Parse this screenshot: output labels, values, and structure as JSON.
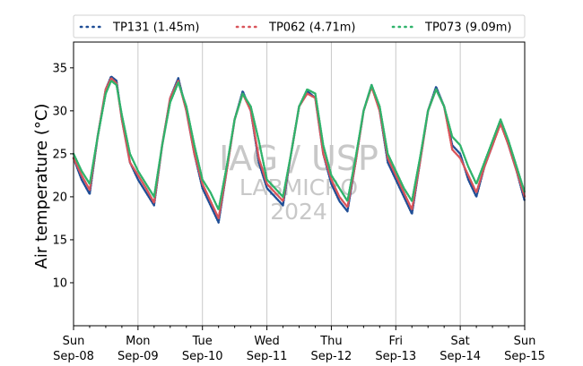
{
  "chart_data": {
    "type": "line",
    "ylabel": "Air temperature (°C)",
    "xlabel": "",
    "ylim": [
      5,
      38
    ],
    "yticks": [
      10,
      15,
      20,
      25,
      30,
      35
    ],
    "xlim": [
      "2024-09-08T00:00",
      "2024-09-15T00:00"
    ],
    "xticks": [
      {
        "date": "2024-09-08",
        "label1": "Sun",
        "label2": "Sep-08"
      },
      {
        "date": "2024-09-09",
        "label1": "Mon",
        "label2": "Sep-09"
      },
      {
        "date": "2024-09-10",
        "label1": "Tue",
        "label2": "Sep-10"
      },
      {
        "date": "2024-09-11",
        "label1": "Wed",
        "label2": "Sep-11"
      },
      {
        "date": "2024-09-12",
        "label1": "Thu",
        "label2": "Sep-12"
      },
      {
        "date": "2024-09-13",
        "label1": "Fri",
        "label2": "Sep-13"
      },
      {
        "date": "2024-09-14",
        "label1": "Sat",
        "label2": "Sep-14"
      },
      {
        "date": "2024-09-15",
        "label1": "Sun",
        "label2": "Sep-15"
      }
    ],
    "grid": "vertical lines at day boundaries",
    "legend_position": "top",
    "series": [
      {
        "name": "TP131 (1.45m)",
        "color": "#1f4e96",
        "style": "dotted",
        "points": [
          [
            "2024-09-08T00:00",
            24.5
          ],
          [
            "2024-09-08T03:00",
            22.0
          ],
          [
            "2024-09-08T06:00",
            20.3
          ],
          [
            "2024-09-08T09:00",
            27.0
          ],
          [
            "2024-09-08T12:00",
            32.5
          ],
          [
            "2024-09-08T14:00",
            34.0
          ],
          [
            "2024-09-08T16:00",
            33.5
          ],
          [
            "2024-09-08T18:00",
            29.0
          ],
          [
            "2024-09-08T21:00",
            24.0
          ],
          [
            "2024-09-09T00:00",
            22.0
          ],
          [
            "2024-09-09T03:00",
            20.5
          ],
          [
            "2024-09-09T06:00",
            19.0
          ],
          [
            "2024-09-09T09:00",
            26.0
          ],
          [
            "2024-09-09T12:00",
            31.5
          ],
          [
            "2024-09-09T15:00",
            33.8
          ],
          [
            "2024-09-09T18:00",
            30.0
          ],
          [
            "2024-09-09T21:00",
            25.0
          ],
          [
            "2024-09-10T00:00",
            21.0
          ],
          [
            "2024-09-10T03:00",
            19.0
          ],
          [
            "2024-09-10T06:00",
            17.0
          ],
          [
            "2024-09-10T09:00",
            23.0
          ],
          [
            "2024-09-10T12:00",
            29.0
          ],
          [
            "2024-09-10T15:00",
            32.3
          ],
          [
            "2024-09-10T18:00",
            30.0
          ],
          [
            "2024-09-10T21:00",
            24.0
          ],
          [
            "2024-09-11T00:00",
            21.0
          ],
          [
            "2024-09-11T03:00",
            20.0
          ],
          [
            "2024-09-11T06:00",
            19.0
          ],
          [
            "2024-09-11T09:00",
            25.0
          ],
          [
            "2024-09-11T12:00",
            30.5
          ],
          [
            "2024-09-11T15:00",
            32.3
          ],
          [
            "2024-09-11T18:00",
            31.5
          ],
          [
            "2024-09-11T21:00",
            25.0
          ],
          [
            "2024-09-12T00:00",
            21.5
          ],
          [
            "2024-09-12T03:00",
            19.5
          ],
          [
            "2024-09-12T06:00",
            18.3
          ],
          [
            "2024-09-12T09:00",
            24.0
          ],
          [
            "2024-09-12T12:00",
            30.0
          ],
          [
            "2024-09-12T15:00",
            33.0
          ],
          [
            "2024-09-12T18:00",
            30.0
          ],
          [
            "2024-09-12T21:00",
            24.0
          ],
          [
            "2024-09-13T00:00",
            22.0
          ],
          [
            "2024-09-13T03:00",
            20.0
          ],
          [
            "2024-09-13T06:00",
            18.0
          ],
          [
            "2024-09-13T09:00",
            24.0
          ],
          [
            "2024-09-13T12:00",
            30.0
          ],
          [
            "2024-09-13T15:00",
            32.8
          ],
          [
            "2024-09-13T18:00",
            30.5
          ],
          [
            "2024-09-13T21:00",
            26.0
          ],
          [
            "2024-09-14T00:00",
            25.0
          ],
          [
            "2024-09-14T03:00",
            22.0
          ],
          [
            "2024-09-14T06:00",
            20.0
          ],
          [
            "2024-09-14T09:00",
            23.5
          ],
          [
            "2024-09-14T12:00",
            26.0
          ],
          [
            "2024-09-14T15:00",
            28.8
          ],
          [
            "2024-09-14T18:00",
            26.0
          ],
          [
            "2024-09-14T21:00",
            23.0
          ],
          [
            "2024-09-15T00:00",
            19.5
          ]
        ]
      },
      {
        "name": "TP062 (4.71m)",
        "color": "#d9545a",
        "style": "dotted",
        "points": [
          [
            "2024-09-08T00:00",
            24.5
          ],
          [
            "2024-09-08T03:00",
            22.5
          ],
          [
            "2024-09-08T06:00",
            20.8
          ],
          [
            "2024-09-08T09:00",
            27.0
          ],
          [
            "2024-09-08T12:00",
            32.5
          ],
          [
            "2024-09-08T14:00",
            33.8
          ],
          [
            "2024-09-08T16:00",
            33.2
          ],
          [
            "2024-09-08T18:00",
            29.0
          ],
          [
            "2024-09-08T21:00",
            24.0
          ],
          [
            "2024-09-09T00:00",
            22.5
          ],
          [
            "2024-09-09T03:00",
            21.0
          ],
          [
            "2024-09-09T06:00",
            19.3
          ],
          [
            "2024-09-09T09:00",
            26.0
          ],
          [
            "2024-09-09T12:00",
            31.5
          ],
          [
            "2024-09-09T15:00",
            33.5
          ],
          [
            "2024-09-09T18:00",
            30.0
          ],
          [
            "2024-09-09T21:00",
            25.0
          ],
          [
            "2024-09-10T00:00",
            21.5
          ],
          [
            "2024-09-10T03:00",
            19.5
          ],
          [
            "2024-09-10T06:00",
            17.5
          ],
          [
            "2024-09-10T09:00",
            23.0
          ],
          [
            "2024-09-10T12:00",
            29.0
          ],
          [
            "2024-09-10T15:00",
            32.0
          ],
          [
            "2024-09-10T18:00",
            30.0
          ],
          [
            "2024-09-10T21:00",
            24.5
          ],
          [
            "2024-09-11T00:00",
            21.5
          ],
          [
            "2024-09-11T03:00",
            20.5
          ],
          [
            "2024-09-11T06:00",
            19.5
          ],
          [
            "2024-09-11T09:00",
            25.0
          ],
          [
            "2024-09-11T12:00",
            30.5
          ],
          [
            "2024-09-11T15:00",
            32.0
          ],
          [
            "2024-09-11T18:00",
            31.5
          ],
          [
            "2024-09-11T21:00",
            25.0
          ],
          [
            "2024-09-12T00:00",
            22.0
          ],
          [
            "2024-09-12T03:00",
            20.0
          ],
          [
            "2024-09-12T06:00",
            18.8
          ],
          [
            "2024-09-12T09:00",
            24.0
          ],
          [
            "2024-09-12T12:00",
            30.0
          ],
          [
            "2024-09-12T15:00",
            32.8
          ],
          [
            "2024-09-12T18:00",
            30.0
          ],
          [
            "2024-09-12T21:00",
            24.5
          ],
          [
            "2024-09-13T00:00",
            22.5
          ],
          [
            "2024-09-13T03:00",
            20.5
          ],
          [
            "2024-09-13T06:00",
            18.5
          ],
          [
            "2024-09-13T09:00",
            24.0
          ],
          [
            "2024-09-13T12:00",
            30.0
          ],
          [
            "2024-09-13T15:00",
            32.5
          ],
          [
            "2024-09-13T18:00",
            30.5
          ],
          [
            "2024-09-13T21:00",
            25.5
          ],
          [
            "2024-09-14T00:00",
            24.5
          ],
          [
            "2024-09-14T03:00",
            22.5
          ],
          [
            "2024-09-14T06:00",
            20.5
          ],
          [
            "2024-09-14T09:00",
            23.5
          ],
          [
            "2024-09-14T12:00",
            26.0
          ],
          [
            "2024-09-14T15:00",
            28.5
          ],
          [
            "2024-09-14T18:00",
            26.0
          ],
          [
            "2024-09-14T21:00",
            23.0
          ],
          [
            "2024-09-15T00:00",
            20.0
          ]
        ]
      },
      {
        "name": "TP073 (9.09m)",
        "color": "#2fb36b",
        "style": "dotted",
        "points": [
          [
            "2024-09-08T00:00",
            25.0
          ],
          [
            "2024-09-08T03:00",
            23.0
          ],
          [
            "2024-09-08T06:00",
            21.5
          ],
          [
            "2024-09-08T09:00",
            27.0
          ],
          [
            "2024-09-08T12:00",
            32.0
          ],
          [
            "2024-09-08T14:00",
            33.5
          ],
          [
            "2024-09-08T16:00",
            33.0
          ],
          [
            "2024-09-08T18:00",
            29.5
          ],
          [
            "2024-09-08T21:00",
            25.0
          ],
          [
            "2024-09-09T00:00",
            23.0
          ],
          [
            "2024-09-09T03:00",
            21.5
          ],
          [
            "2024-09-09T06:00",
            20.0
          ],
          [
            "2024-09-09T09:00",
            26.0
          ],
          [
            "2024-09-09T12:00",
            31.0
          ],
          [
            "2024-09-09T15:00",
            33.3
          ],
          [
            "2024-09-09T18:00",
            30.5
          ],
          [
            "2024-09-09T21:00",
            26.0
          ],
          [
            "2024-09-10T00:00",
            22.0
          ],
          [
            "2024-09-10T03:00",
            20.5
          ],
          [
            "2024-09-10T06:00",
            18.5
          ],
          [
            "2024-09-10T09:00",
            23.5
          ],
          [
            "2024-09-10T12:00",
            29.0
          ],
          [
            "2024-09-10T15:00",
            32.0
          ],
          [
            "2024-09-10T18:00",
            30.5
          ],
          [
            "2024-09-10T21:00",
            26.5
          ],
          [
            "2024-09-11T00:00",
            22.0
          ],
          [
            "2024-09-11T03:00",
            21.0
          ],
          [
            "2024-09-11T06:00",
            20.0
          ],
          [
            "2024-09-11T09:00",
            25.0
          ],
          [
            "2024-09-11T12:00",
            30.5
          ],
          [
            "2024-09-11T15:00",
            32.5
          ],
          [
            "2024-09-11T18:00",
            32.0
          ],
          [
            "2024-09-11T21:00",
            26.0
          ],
          [
            "2024-09-12T00:00",
            22.5
          ],
          [
            "2024-09-12T03:00",
            21.0
          ],
          [
            "2024-09-12T06:00",
            19.5
          ],
          [
            "2024-09-12T09:00",
            24.5
          ],
          [
            "2024-09-12T12:00",
            30.0
          ],
          [
            "2024-09-12T15:00",
            33.0
          ],
          [
            "2024-09-12T18:00",
            30.5
          ],
          [
            "2024-09-12T21:00",
            25.0
          ],
          [
            "2024-09-13T00:00",
            23.0
          ],
          [
            "2024-09-13T03:00",
            21.0
          ],
          [
            "2024-09-13T06:00",
            19.5
          ],
          [
            "2024-09-13T09:00",
            24.5
          ],
          [
            "2024-09-13T12:00",
            30.0
          ],
          [
            "2024-09-13T15:00",
            32.5
          ],
          [
            "2024-09-13T18:00",
            30.5
          ],
          [
            "2024-09-13T21:00",
            27.0
          ],
          [
            "2024-09-14T00:00",
            26.0
          ],
          [
            "2024-09-14T03:00",
            23.5
          ],
          [
            "2024-09-14T06:00",
            21.5
          ],
          [
            "2024-09-14T09:00",
            24.0
          ],
          [
            "2024-09-14T12:00",
            26.5
          ],
          [
            "2024-09-14T15:00",
            29.0
          ],
          [
            "2024-09-14T18:00",
            26.5
          ],
          [
            "2024-09-14T21:00",
            23.5
          ],
          [
            "2024-09-15T00:00",
            20.5
          ]
        ]
      }
    ]
  },
  "watermark": {
    "line1": "IAG / USP",
    "line2": "LABMICRO",
    "line3": "2024"
  }
}
